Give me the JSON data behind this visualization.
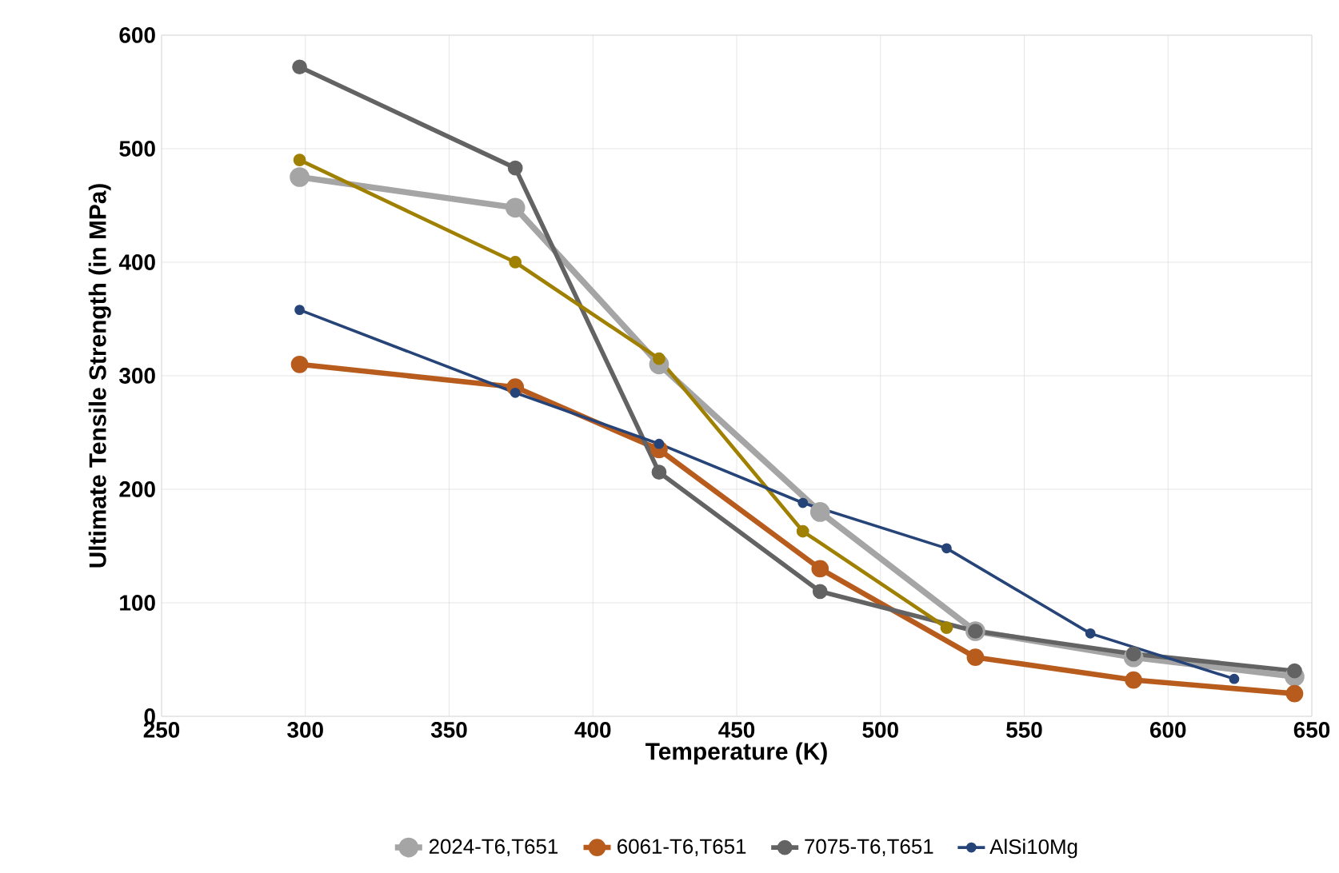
{
  "chart_data": {
    "type": "line",
    "xlabel": "Temperature (K)",
    "ylabel": "Ultimate Tensile Strength (in MPa)",
    "xlim": [
      250,
      650
    ],
    "xticks": [
      250,
      300,
      350,
      400,
      450,
      500,
      550,
      600,
      650
    ],
    "ylim": [
      0,
      600
    ],
    "yticks": [
      0,
      100,
      200,
      300,
      400,
      500,
      600
    ],
    "grid": true,
    "legend": "bottom",
    "marker": "circle",
    "line_style": "solid",
    "series": [
      {
        "name": "2024-T6,T651",
        "color": "#a5a5a5",
        "x": [
          298,
          373,
          423,
          479,
          533,
          588,
          644
        ],
        "values": [
          475,
          448,
          310,
          180,
          75,
          52,
          35
        ]
      },
      {
        "name": "6061-T6,T651",
        "color": "#b85c1e",
        "x": [
          298,
          373,
          423,
          479,
          533,
          588,
          644
        ],
        "values": [
          310,
          290,
          235,
          130,
          52,
          32,
          20
        ]
      },
      {
        "name": "7075-T6,T651",
        "color": "#636363",
        "x": [
          298,
          373,
          423,
          479,
          533,
          588,
          644
        ],
        "values": [
          572,
          483,
          215,
          110,
          75,
          55,
          40
        ]
      },
      {
        "color": "#a08000",
        "x": [
          298,
          373,
          423,
          473,
          523
        ],
        "values": [
          490,
          400,
          315,
          163,
          78
        ]
      },
      {
        "name": "AlSi10Mg",
        "color": "#264478",
        "x": [
          298,
          373,
          423,
          473,
          523,
          573,
          623
        ],
        "values": [
          358,
          285,
          240,
          188,
          148,
          73,
          33
        ]
      }
    ]
  }
}
